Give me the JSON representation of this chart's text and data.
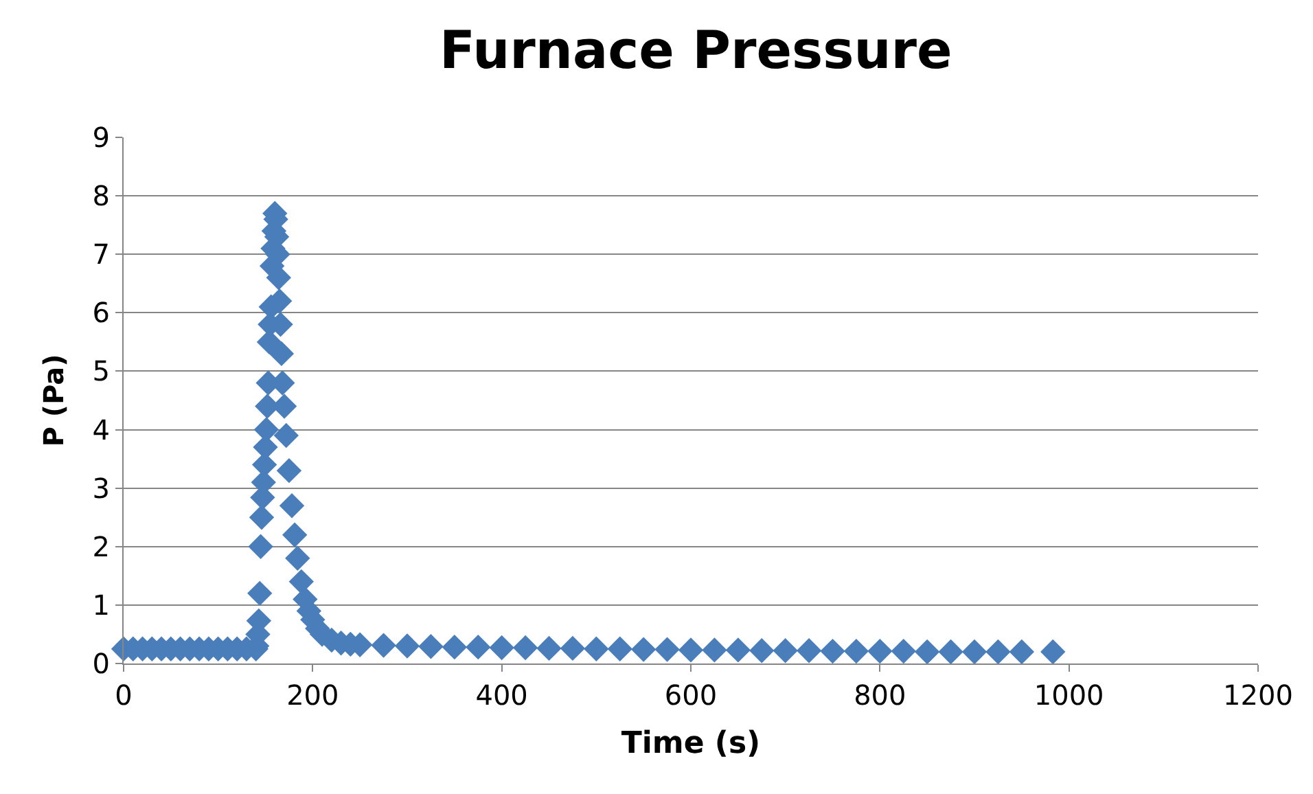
{
  "chart_data": {
    "type": "scatter",
    "title": "Furnace Pressure",
    "xlabel": "Time (s)",
    "ylabel": "P (Pa)",
    "x": [
      0,
      10,
      20,
      30,
      40,
      50,
      60,
      70,
      80,
      90,
      100,
      110,
      120,
      130,
      140,
      141,
      142,
      143,
      144,
      145,
      146,
      147,
      148,
      149,
      150,
      151,
      152,
      153,
      154,
      155,
      156,
      157,
      158,
      159,
      160,
      161,
      162,
      163,
      164,
      165,
      166,
      167,
      168,
      170,
      172,
      175,
      178,
      181,
      184,
      188,
      192,
      196,
      200,
      205,
      210,
      220,
      230,
      240,
      250,
      275,
      300,
      325,
      350,
      375,
      400,
      425,
      450,
      475,
      500,
      525,
      550,
      575,
      600,
      625,
      650,
      675,
      700,
      725,
      750,
      775,
      800,
      825,
      850,
      875,
      900,
      925,
      950,
      983
    ],
    "series": [
      {
        "color": "#4a7ebb",
        "values": [
          0.25,
          0.25,
          0.25,
          0.25,
          0.25,
          0.25,
          0.25,
          0.25,
          0.25,
          0.25,
          0.25,
          0.25,
          0.25,
          0.25,
          0.25,
          0.3,
          0.5,
          0.73,
          1.2,
          2.0,
          2.5,
          2.84,
          3.1,
          3.4,
          3.7,
          4.0,
          4.4,
          4.8,
          5.5,
          5.8,
          6.1,
          6.8,
          7.1,
          7.4,
          7.7,
          7.6,
          7.3,
          7.0,
          6.6,
          6.2,
          5.8,
          5.3,
          4.8,
          4.4,
          3.9,
          3.3,
          2.7,
          2.2,
          1.8,
          1.4,
          1.1,
          0.9,
          0.75,
          0.6,
          0.5,
          0.4,
          0.35,
          0.33,
          0.32,
          0.31,
          0.3,
          0.29,
          0.28,
          0.28,
          0.27,
          0.27,
          0.26,
          0.26,
          0.25,
          0.25,
          0.24,
          0.24,
          0.23,
          0.23,
          0.23,
          0.22,
          0.22,
          0.22,
          0.21,
          0.21,
          0.21,
          0.21,
          0.2,
          0.2,
          0.2,
          0.2,
          0.2,
          0.2
        ]
      }
    ],
    "xlim": [
      0,
      1200
    ],
    "xticks": [
      0,
      200,
      400,
      600,
      800,
      1000,
      1200
    ],
    "ylim": [
      0,
      9
    ],
    "yticks": [
      0,
      1,
      2,
      3,
      4,
      5,
      6,
      7,
      8,
      9
    ],
    "grid": "y",
    "marker": "diamond"
  }
}
